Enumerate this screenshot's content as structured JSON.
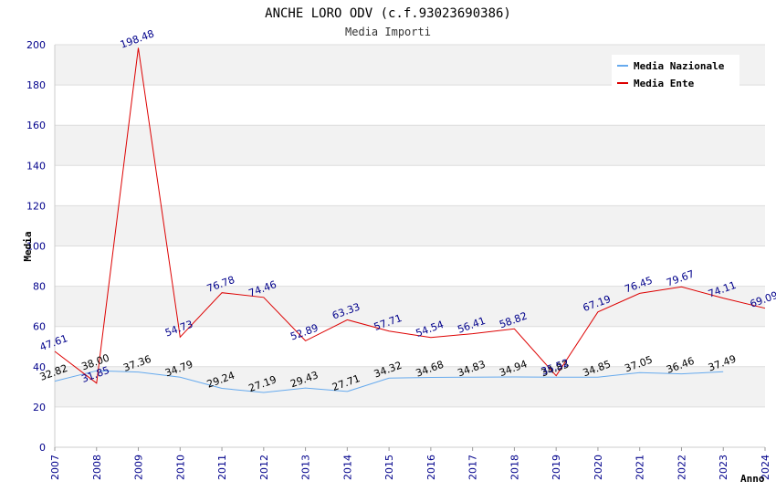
{
  "chart_data": {
    "type": "line",
    "title": "ANCHE LORO ODV (c.f.93023690386)",
    "subtitle": "Media Importi",
    "xlabel": "Anno",
    "ylabel": "Media",
    "ylim": [
      0,
      200
    ],
    "yticks": [
      "0",
      "20",
      "40",
      "60",
      "80",
      "100",
      "120",
      "140",
      "160",
      "180",
      "200"
    ],
    "x": [
      "2007",
      "2008",
      "2009",
      "2010",
      "2011",
      "2012",
      "2013",
      "2014",
      "2015",
      "2016",
      "2017",
      "2018",
      "2019",
      "2020",
      "2021",
      "2022",
      "2023",
      "2024"
    ],
    "grid": true,
    "legend_position": "top-right",
    "series": [
      {
        "name": "Media Nazionale",
        "color": "#66aaee",
        "label_color": "#000000",
        "values": [
          32.82,
          38.0,
          37.36,
          34.79,
          29.24,
          27.19,
          29.43,
          27.71,
          34.32,
          34.68,
          34.83,
          34.94,
          34.83,
          34.85,
          37.05,
          36.46,
          37.49,
          null
        ],
        "labels": [
          "32.82",
          "38.00",
          "37.36",
          "34.79",
          "29.24",
          "27.19",
          "29.43",
          "27.71",
          "34.32",
          "34.68",
          "34.83",
          "34.94",
          "34.83",
          "34.85",
          "37.05",
          "36.46",
          "37.49",
          ""
        ]
      },
      {
        "name": "Media Ente",
        "color": "#dd0000",
        "label_color": "#00008b",
        "values": [
          47.61,
          31.85,
          198.48,
          54.73,
          76.78,
          74.46,
          52.89,
          63.33,
          57.71,
          54.54,
          56.41,
          58.82,
          35.52,
          67.19,
          76.45,
          79.67,
          74.11,
          69.09
        ],
        "labels": [
          "47.61",
          "31.85",
          "198.48",
          "54.73",
          "76.78",
          "74.46",
          "52.89",
          "63.33",
          "57.71",
          "54.54",
          "56.41",
          "58.82",
          "35.52",
          "67.19",
          "76.45",
          "79.67",
          "74.11",
          "69.09"
        ]
      }
    ]
  }
}
